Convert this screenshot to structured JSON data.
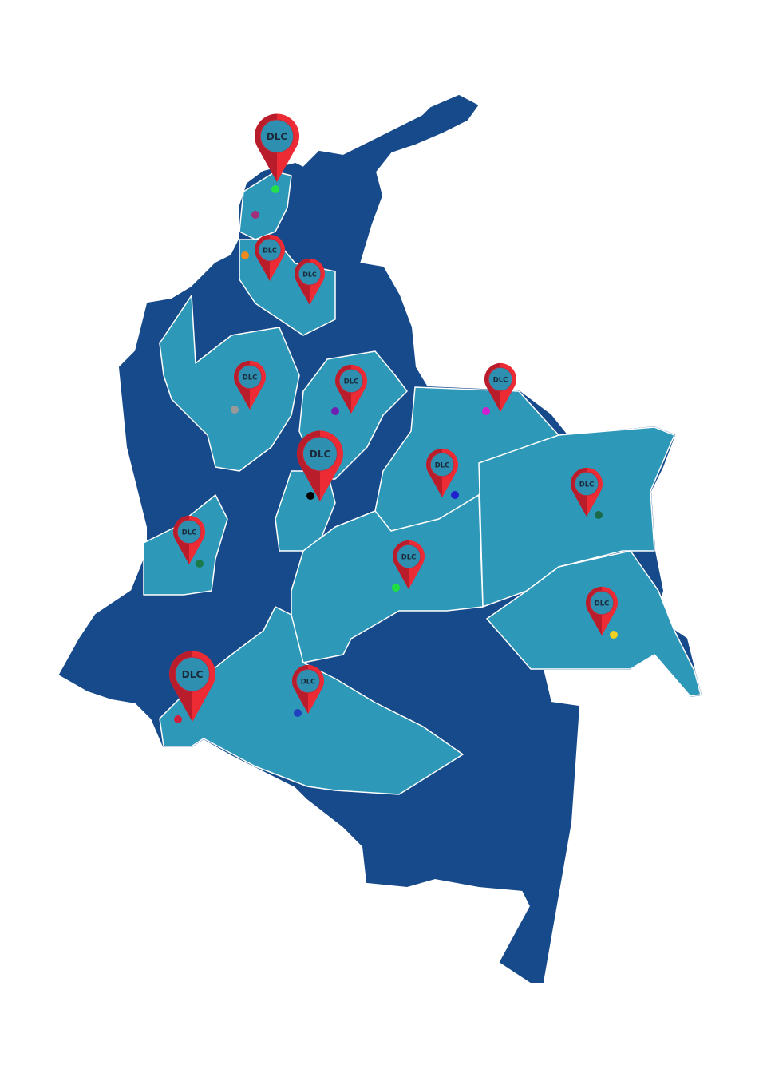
{
  "pins": [
    {
      "label": "DLC"
    },
    {
      "label": "DLC"
    },
    {
      "label": "DLC"
    },
    {
      "label": "DLC"
    },
    {
      "label": "DLC"
    },
    {
      "label": "DLC"
    },
    {
      "label": "DLC"
    },
    {
      "label": "DLC"
    },
    {
      "label": "DLC"
    },
    {
      "label": "DLC"
    },
    {
      "label": "DLC"
    },
    {
      "label": "DLC"
    },
    {
      "label": "DLC"
    },
    {
      "label": "DLC"
    }
  ],
  "dots": [
    {
      "color": "#22e04a"
    },
    {
      "color": "#a0307a"
    },
    {
      "color": "#f08a20"
    },
    {
      "color": "#999999"
    },
    {
      "color": "#7020b0"
    },
    {
      "color": "#d020d0"
    },
    {
      "color": "#000000"
    },
    {
      "color": "#2020d0"
    },
    {
      "color": "#1a6a4a"
    },
    {
      "color": "#1a7a4a"
    },
    {
      "color": "#20e040"
    },
    {
      "color": "#f0d020"
    },
    {
      "color": "#d02040"
    },
    {
      "color": "#2040c0"
    }
  ]
}
